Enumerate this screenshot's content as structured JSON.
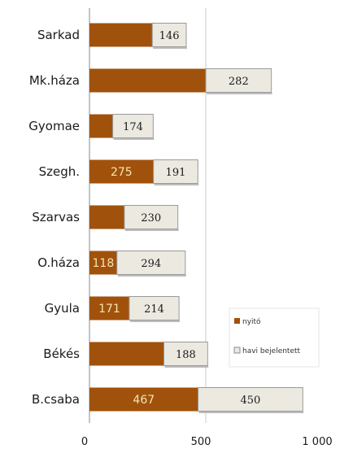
{
  "chart_data": {
    "type": "bar",
    "orientation": "horizontal",
    "stacked": true,
    "categories": [
      "Sarkad",
      "Mk.háza",
      "Gyomae",
      "Szegh.",
      "Szarvas",
      "O.háza",
      "Gyula",
      "Békés",
      "B.csaba"
    ],
    "series": [
      {
        "name": "nyitó",
        "color": "#a0520c",
        "values": [
          270,
          500,
          100,
          275,
          150,
          118,
          171,
          320,
          467
        ],
        "value_labels": [
          "",
          "",
          "",
          "275",
          "",
          "118",
          "171",
          "",
          "467"
        ]
      },
      {
        "name": "havi bejelentett",
        "color": "#ece9e1",
        "values": [
          146,
          282,
          174,
          191,
          230,
          294,
          214,
          188,
          450
        ],
        "value_labels": [
          "146",
          "282",
          "174",
          "191",
          "230",
          "294",
          "214",
          "188",
          "450"
        ]
      }
    ],
    "xlim": [
      0,
      1000
    ],
    "x_ticks": [
      "0",
      "500",
      "1 000"
    ],
    "gridlines": [
      500
    ],
    "legend_position": "right",
    "title": "",
    "xlabel": "",
    "ylabel": ""
  }
}
